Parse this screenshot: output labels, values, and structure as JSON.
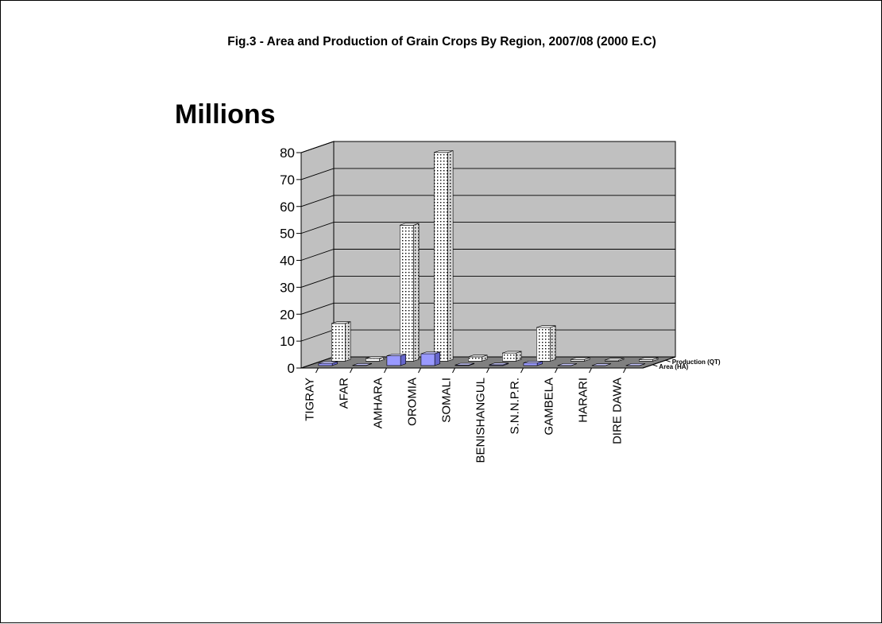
{
  "chart_data": {
    "type": "bar",
    "title": "Fig.3 - Area and Production of Grain Crops By Region, 2007/08 (2000 E.C)",
    "unit_label": "Millions",
    "xlabel": "",
    "ylabel": "",
    "ylim": [
      0,
      80
    ],
    "yticks": [
      0,
      10,
      20,
      30,
      40,
      50,
      60,
      70,
      80
    ],
    "grid": true,
    "view": "3d",
    "categories": [
      "TIGRAY",
      "AFAR",
      "AMHARA",
      "OROMIA",
      "SOMALI",
      "BENISHANGUL",
      "S.N.N.P.R.",
      "GAMBELA",
      "HARARI",
      "DIRE DAWA"
    ],
    "series": [
      {
        "name": "Area (HA)",
        "values": [
          0.8,
          0.1,
          3.6,
          4.4,
          0.2,
          0.3,
          1.0,
          0.05,
          0.02,
          0.04
        ]
      },
      {
        "name": "Production (QT)",
        "values": [
          14.0,
          1.0,
          50.5,
          77.5,
          1.6,
          3.0,
          12.5,
          0.6,
          0.4,
          0.6
        ]
      }
    ],
    "colors": {
      "wall": "#c0c0c0",
      "floor": "#808080",
      "front_series": "#9999ff",
      "back_series": "#ffffff",
      "grid": "#000000"
    }
  }
}
